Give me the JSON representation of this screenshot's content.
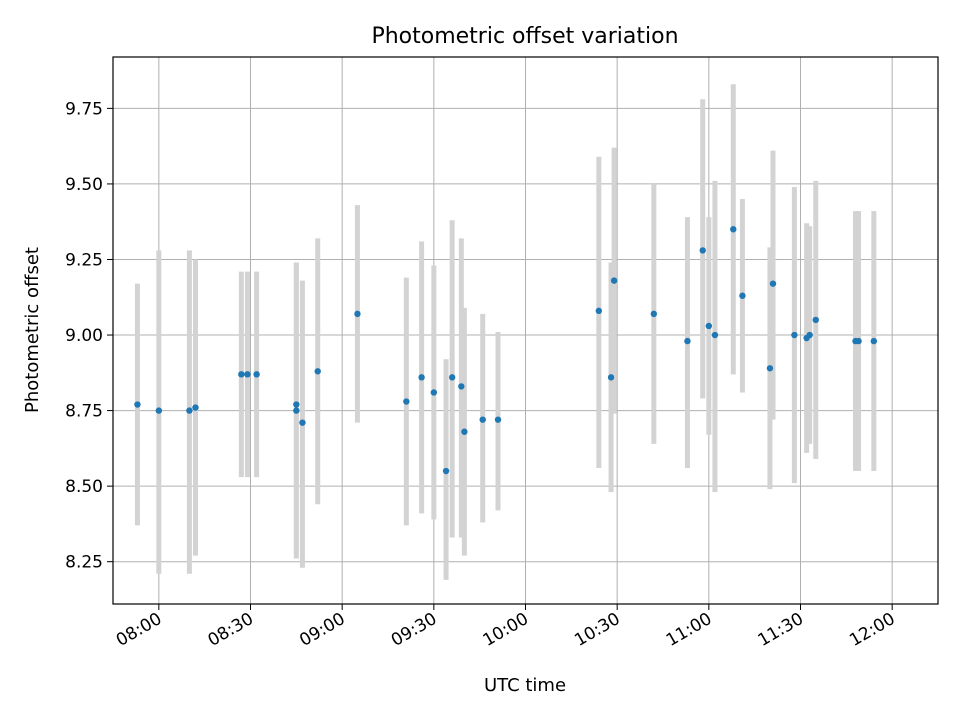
{
  "chart_data": {
    "type": "scatter",
    "title": "Photometric offset variation",
    "xlabel": "UTC time",
    "ylabel": "Photometric offset",
    "xlim": [
      "07:45",
      "12:15"
    ],
    "ylim": [
      8.11,
      9.92
    ],
    "x_ticks": [
      "08:00",
      "08:30",
      "09:00",
      "09:30",
      "10:00",
      "10:30",
      "11:00",
      "11:30",
      "12:00"
    ],
    "y_ticks": [
      "8.25",
      "8.50",
      "8.75",
      "9.00",
      "9.25",
      "9.50",
      "9.75"
    ],
    "grid": true,
    "colors": {
      "point": "#1f77b4",
      "errorbar": "#d3d3d3",
      "grid": "#b0b0b0"
    },
    "points": [
      {
        "x": "07:53",
        "y": 8.77,
        "ylo": 8.37,
        "yhi": 9.17
      },
      {
        "x": "07:60",
        "y": 8.75,
        "ylo": 8.21,
        "yhi": 9.28
      },
      {
        "x": "08:10",
        "y": 8.75,
        "ylo": 8.21,
        "yhi": 9.28
      },
      {
        "x": "08:12",
        "y": 8.76,
        "ylo": 8.27,
        "yhi": 9.25
      },
      {
        "x": "08:27",
        "y": 8.87,
        "ylo": 8.53,
        "yhi": 9.21
      },
      {
        "x": "08:29",
        "y": 8.87,
        "ylo": 8.53,
        "yhi": 9.21
      },
      {
        "x": "08:32",
        "y": 8.87,
        "ylo": 8.53,
        "yhi": 9.21
      },
      {
        "x": "08:45",
        "y": 8.75,
        "ylo": 8.26,
        "yhi": 9.24
      },
      {
        "x": "08:45",
        "y": 8.77,
        "ylo": 8.28,
        "yhi": 9.24
      },
      {
        "x": "08:47",
        "y": 8.71,
        "ylo": 8.23,
        "yhi": 9.18
      },
      {
        "x": "08:52",
        "y": 8.88,
        "ylo": 8.44,
        "yhi": 9.32
      },
      {
        "x": "09:05",
        "y": 9.07,
        "ylo": 8.71,
        "yhi": 9.43
      },
      {
        "x": "09:21",
        "y": 8.78,
        "ylo": 8.37,
        "yhi": 9.19
      },
      {
        "x": "09:26",
        "y": 8.86,
        "ylo": 8.41,
        "yhi": 9.31
      },
      {
        "x": "09:30",
        "y": 8.81,
        "ylo": 8.39,
        "yhi": 9.23
      },
      {
        "x": "09:34",
        "y": 8.55,
        "ylo": 8.19,
        "yhi": 8.92
      },
      {
        "x": "09:36",
        "y": 8.86,
        "ylo": 8.33,
        "yhi": 9.38
      },
      {
        "x": "09:39",
        "y": 8.83,
        "ylo": 8.33,
        "yhi": 9.32
      },
      {
        "x": "09:40",
        "y": 8.68,
        "ylo": 8.27,
        "yhi": 9.09
      },
      {
        "x": "09:46",
        "y": 8.72,
        "ylo": 8.38,
        "yhi": 9.07
      },
      {
        "x": "09:51",
        "y": 8.72,
        "ylo": 8.42,
        "yhi": 9.01
      },
      {
        "x": "10:24",
        "y": 9.08,
        "ylo": 8.56,
        "yhi": 9.59
      },
      {
        "x": "10:28",
        "y": 8.86,
        "ylo": 8.48,
        "yhi": 9.24
      },
      {
        "x": "10:29",
        "y": 9.18,
        "ylo": 8.74,
        "yhi": 9.62
      },
      {
        "x": "10:42",
        "y": 9.07,
        "ylo": 8.64,
        "yhi": 9.5
      },
      {
        "x": "10:53",
        "y": 8.98,
        "ylo": 8.56,
        "yhi": 9.39
      },
      {
        "x": "10:58",
        "y": 9.28,
        "ylo": 8.79,
        "yhi": 9.78
      },
      {
        "x": "11:00",
        "y": 9.03,
        "ylo": 8.67,
        "yhi": 9.39
      },
      {
        "x": "11:02",
        "y": 9.0,
        "ylo": 8.48,
        "yhi": 9.51
      },
      {
        "x": "11:08",
        "y": 9.35,
        "ylo": 8.87,
        "yhi": 9.83
      },
      {
        "x": "11:11",
        "y": 9.13,
        "ylo": 8.81,
        "yhi": 9.45
      },
      {
        "x": "11:20",
        "y": 8.89,
        "ylo": 8.49,
        "yhi": 9.29
      },
      {
        "x": "11:21",
        "y": 9.17,
        "ylo": 8.72,
        "yhi": 9.61
      },
      {
        "x": "11:28",
        "y": 9.0,
        "ylo": 8.51,
        "yhi": 9.49
      },
      {
        "x": "11:32",
        "y": 8.99,
        "ylo": 8.61,
        "yhi": 9.37
      },
      {
        "x": "11:33",
        "y": 9.0,
        "ylo": 8.64,
        "yhi": 9.36
      },
      {
        "x": "11:35",
        "y": 9.05,
        "ylo": 8.59,
        "yhi": 9.51
      },
      {
        "x": "11:48",
        "y": 8.98,
        "ylo": 8.55,
        "yhi": 9.41
      },
      {
        "x": "11:49",
        "y": 8.98,
        "ylo": 8.55,
        "yhi": 9.41
      },
      {
        "x": "11:54",
        "y": 8.98,
        "ylo": 8.55,
        "yhi": 9.41
      }
    ]
  }
}
